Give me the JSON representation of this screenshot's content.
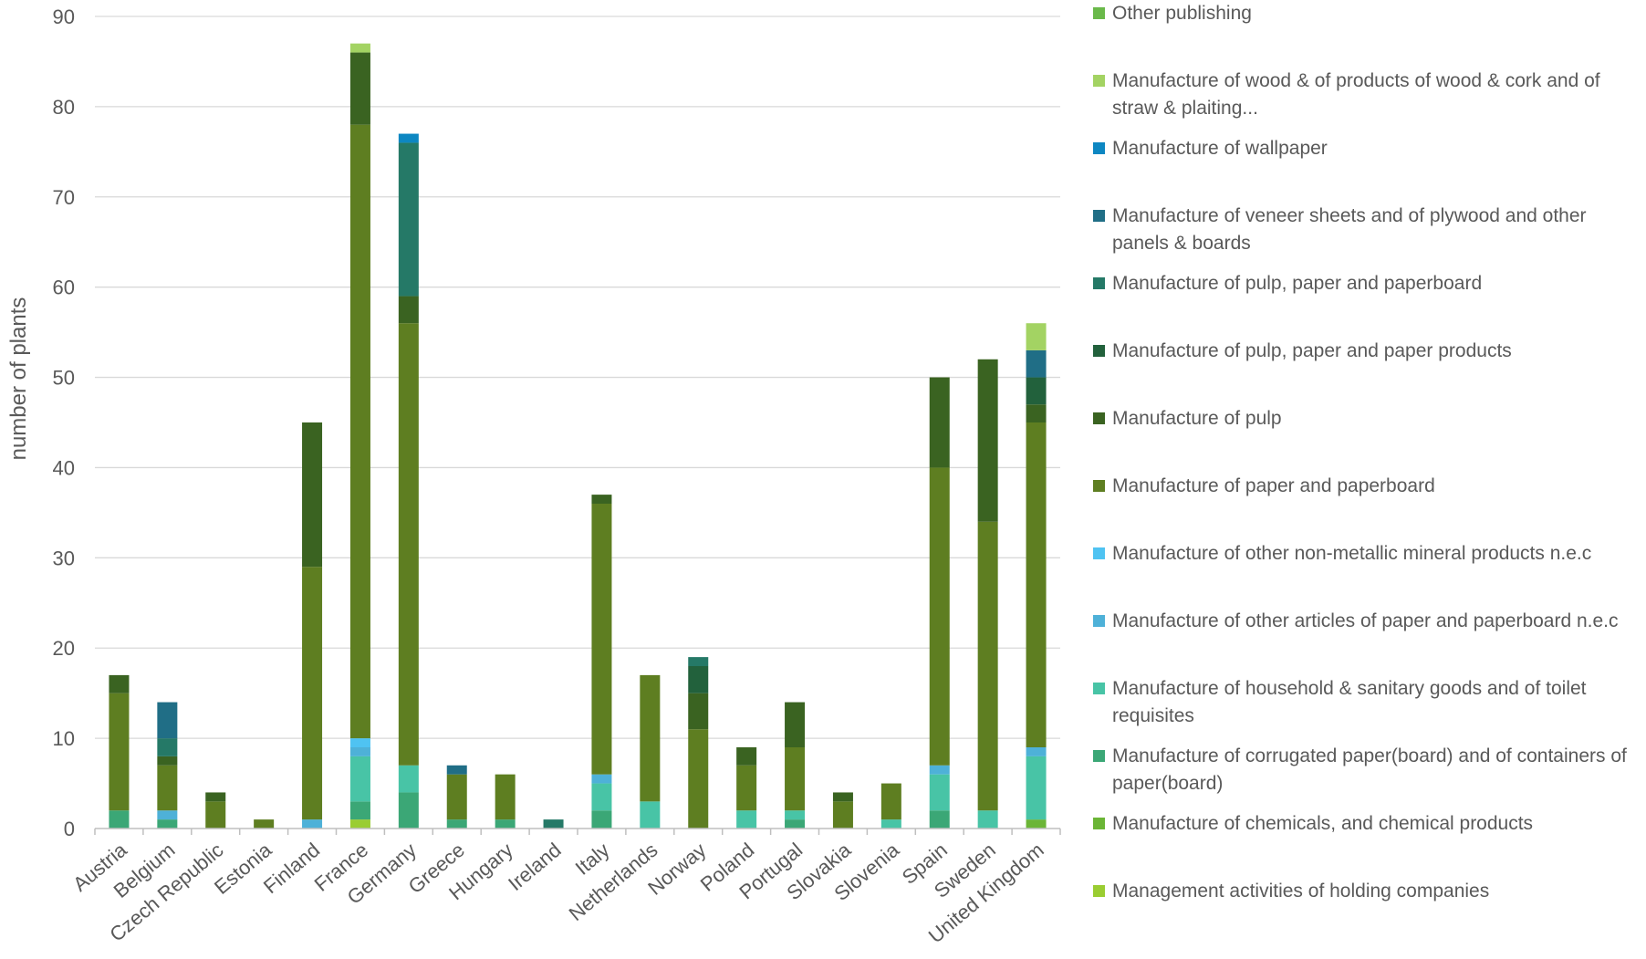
{
  "chart_data": {
    "type": "bar",
    "stacked": true,
    "xlabel": "",
    "ylabel": "number of plants",
    "ylim": [
      0,
      90
    ],
    "yticks": [
      0,
      10,
      20,
      30,
      40,
      50,
      60,
      70,
      80,
      90
    ],
    "grid": true,
    "legend_position": "right",
    "categories": [
      "Austria",
      "Belgium",
      "Czech Republic",
      "Estonia",
      "Finland",
      "France",
      "Germany",
      "Greece",
      "Hungary",
      "Ireland",
      "Italy",
      "Netherlands",
      "Norway",
      "Poland",
      "Portugal",
      "Slovakia",
      "Slovenia",
      "Spain",
      "Sweden",
      "United Kingdom"
    ],
    "series": [
      {
        "name": "Management activities of holding companies",
        "color": "#9ACD32",
        "values": [
          0,
          0,
          0,
          0,
          0,
          1,
          0,
          0,
          0,
          0,
          0,
          0,
          0,
          0,
          0,
          0,
          0,
          0,
          0,
          0
        ]
      },
      {
        "name": "Manufacture of chemicals, and chemical products",
        "color": "#6BB536",
        "values": [
          0,
          0,
          0,
          0,
          0,
          0,
          0,
          0,
          0,
          0,
          0,
          0,
          0,
          0,
          0,
          0,
          0,
          0,
          0,
          1
        ]
      },
      {
        "name": "Manufacture of corrugated paper(board) and of containers of paper(board)",
        "color": "#3BA776",
        "values": [
          2,
          1,
          0,
          0,
          0,
          2,
          4,
          1,
          1,
          0,
          2,
          0,
          0,
          0,
          1,
          0,
          0,
          2,
          0,
          0
        ]
      },
      {
        "name": "Manufacture of household & sanitary goods and of toilet requisites",
        "color": "#48C4A6",
        "values": [
          0,
          0,
          0,
          0,
          0,
          5,
          3,
          0,
          0,
          0,
          3,
          3,
          0,
          2,
          1,
          0,
          1,
          4,
          2,
          7
        ]
      },
      {
        "name": "Manufacture of other articles of paper and paperboard n.e.c",
        "color": "#4EB1D8",
        "values": [
          0,
          1,
          0,
          0,
          1,
          1,
          0,
          0,
          0,
          0,
          1,
          0,
          0,
          0,
          0,
          0,
          0,
          1,
          0,
          1
        ]
      },
      {
        "name": "Manufacture of other non-metallic mineral products n.e.c",
        "color": "#4FC3F2",
        "values": [
          0,
          0,
          0,
          0,
          0,
          1,
          0,
          0,
          0,
          0,
          0,
          0,
          0,
          0,
          0,
          0,
          0,
          0,
          0,
          0
        ]
      },
      {
        "name": "Manufacture of paper and paperboard",
        "color": "#5E7E21",
        "values": [
          13,
          5,
          3,
          1,
          28,
          68,
          49,
          5,
          5,
          0,
          30,
          14,
          11,
          5,
          7,
          3,
          4,
          33,
          32,
          36
        ]
      },
      {
        "name": "Manufacture of pulp",
        "color": "#3A6321",
        "values": [
          2,
          1,
          1,
          0,
          16,
          8,
          3,
          0,
          0,
          0,
          1,
          0,
          4,
          2,
          5,
          1,
          0,
          10,
          18,
          2
        ]
      },
      {
        "name": "Manufacture of pulp, paper and paper products",
        "color": "#22613C",
        "values": [
          0,
          0,
          0,
          0,
          0,
          0,
          0,
          0,
          0,
          0,
          0,
          0,
          3,
          0,
          0,
          0,
          0,
          0,
          0,
          3
        ]
      },
      {
        "name": "Manufacture of pulp, paper and paperboard",
        "color": "#257967",
        "values": [
          0,
          2,
          0,
          0,
          0,
          0,
          17,
          0,
          0,
          1,
          0,
          0,
          1,
          0,
          0,
          0,
          0,
          0,
          0,
          0
        ]
      },
      {
        "name": "Manufacture of veneer sheets and of plywood and other panels & boards",
        "color": "#206E86",
        "values": [
          0,
          4,
          0,
          0,
          0,
          0,
          0,
          1,
          0,
          0,
          0,
          0,
          0,
          0,
          0,
          0,
          0,
          0,
          0,
          3
        ]
      },
      {
        "name": "Manufacture of wallpaper",
        "color": "#0D87C2",
        "values": [
          0,
          0,
          0,
          0,
          0,
          0,
          1,
          0,
          0,
          0,
          0,
          0,
          0,
          0,
          0,
          0,
          0,
          0,
          0,
          0
        ]
      },
      {
        "name": "Manufacture of wood & of products of wood & cork and of straw & plaiting...",
        "color": "#A3D363",
        "values": [
          0,
          0,
          0,
          0,
          0,
          1,
          0,
          0,
          0,
          0,
          0,
          0,
          0,
          0,
          0,
          0,
          0,
          0,
          0,
          3
        ]
      },
      {
        "name": "Other publishing",
        "color": "#6AB94A",
        "values": [
          0,
          0,
          0,
          0,
          0,
          0,
          0,
          0,
          0,
          0,
          0,
          0,
          0,
          0,
          0,
          0,
          0,
          0,
          0,
          0
        ]
      }
    ]
  },
  "legend_order": [
    13,
    12,
    11,
    10,
    9,
    8,
    7,
    6,
    5,
    4,
    3,
    2,
    1,
    0
  ],
  "colors": {
    "gridline": "#D9D9D9",
    "axis": "#BFBFBF",
    "text": "#595959"
  }
}
